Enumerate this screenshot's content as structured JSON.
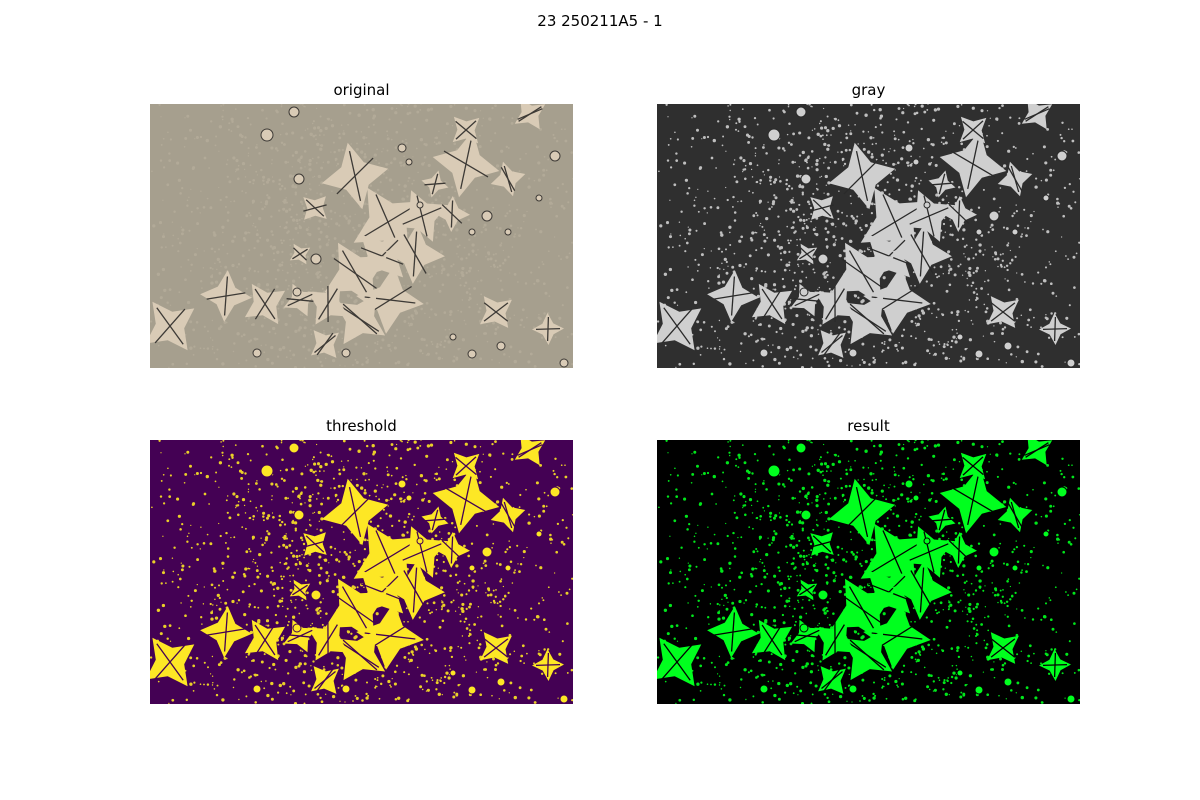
{
  "figure": {
    "suptitle": "23 250211A5 - 1"
  },
  "panels": [
    {
      "title": "original",
      "palette": {
        "background": "#a69f8e",
        "foreground": "#d9cbb6",
        "ink": "#3d3a36"
      }
    },
    {
      "title": "gray",
      "palette": {
        "background": "#2f2f2f",
        "foreground": "#cfcfcf",
        "ink": "#2a2a2a"
      }
    },
    {
      "title": "threshold",
      "palette": {
        "background": "#440154",
        "foreground": "#fde725",
        "ink": "#440154"
      }
    },
    {
      "title": "result",
      "palette": {
        "background": "#000000",
        "foreground": "#00ff1e",
        "ink": "#000000"
      }
    }
  ]
}
